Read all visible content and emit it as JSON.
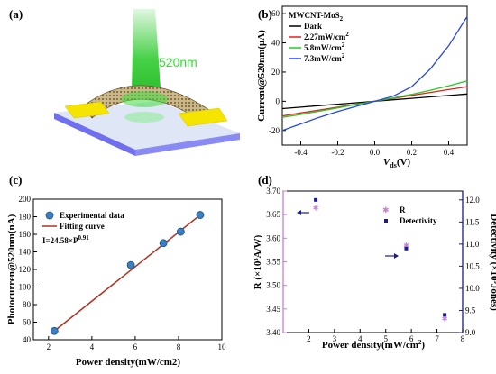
{
  "panel_labels": [
    "(a)",
    "(b)",
    "(c)",
    "(d)"
  ],
  "schematic": {
    "wavelength_label": "520nm",
    "colors": {
      "beam": "#33cc33",
      "electrode": "#f4e400",
      "substrate": "#dfe6f5",
      "substrate_edge": "#6f6ff0",
      "film": "#7a5c2e"
    }
  },
  "chart_data": [
    {
      "panel": "b",
      "type": "line",
      "title": "MWCNT-MoS2",
      "title_main": "MWCNT-MoS",
      "title_sub": "2",
      "xlabel_main": "V",
      "xlabel_sub": "ds",
      "xlabel_tail": "(V)",
      "ylabel": "Current@520nm(μA)",
      "xlim": [
        -0.5,
        0.5
      ],
      "ylim": [
        -30,
        65
      ],
      "xticks": [
        -0.4,
        -0.2,
        0.0,
        0.2,
        0.4
      ],
      "xtick_labels": [
        "-0.4",
        "-0.2",
        "0.0",
        "0.2",
        "0.4"
      ],
      "yticks": [
        -20,
        0,
        20,
        40,
        60
      ],
      "ytick_labels": [
        "-20",
        "0",
        "20",
        "40",
        "60"
      ],
      "legend_position": "top-left",
      "x": [
        -0.5,
        -0.4,
        -0.3,
        -0.2,
        -0.1,
        0.0,
        0.1,
        0.2,
        0.3,
        0.4,
        0.5
      ],
      "series": [
        {
          "name": "Dark",
          "legend_main": "Dark",
          "legend_sup": "",
          "color": "#000000",
          "values": [
            -5,
            -4,
            -3,
            -2,
            -1,
            0,
            1,
            2,
            3,
            4,
            5
          ]
        },
        {
          "name": "2.27mW/cm2",
          "legend_main": "2.27mW/cm",
          "legend_sup": "2",
          "color": "#e02020",
          "values": [
            -10,
            -8,
            -6,
            -4,
            -2,
            0,
            2,
            4,
            6,
            8,
            10
          ]
        },
        {
          "name": "5.8mW/cm2",
          "legend_main": "5.8mW/cm",
          "legend_sup": "2",
          "color": "#22cc22",
          "values": [
            -11,
            -9,
            -6.8,
            -4.5,
            -2.2,
            0,
            2.3,
            4.7,
            7.5,
            10.5,
            14
          ]
        },
        {
          "name": "7.3mW/cm2",
          "legend_main": "7.3mW/cm",
          "legend_sup": "2",
          "color": "#2244ee",
          "values": [
            -20,
            -15.5,
            -11,
            -7,
            -3.5,
            0,
            3.5,
            10,
            22,
            38,
            58
          ]
        }
      ]
    },
    {
      "panel": "c",
      "type": "scatter",
      "xlabel": "Power density(mW/cm2)",
      "ylabel": "Photocurren@520nm(nA)",
      "xlim": [
        1.3,
        10
      ],
      "ylim": [
        40,
        200
      ],
      "xticks": [
        2,
        4,
        6,
        8,
        10
      ],
      "xtick_labels": [
        "2",
        "4",
        "6",
        "8",
        "10"
      ],
      "yticks": [
        40,
        60,
        80,
        100,
        120,
        140,
        160,
        180,
        200
      ],
      "ytick_labels": [
        "40",
        "60",
        "80",
        "100",
        "120",
        "140",
        "160",
        "180",
        "200"
      ],
      "legend_position": "top-left",
      "legend": [
        "Experimental data",
        "Fitting curve"
      ],
      "annotation_main": "I=24.58×P",
      "annotation_sup": "0.91",
      "series": [
        {
          "name": "Experimental data",
          "x": [
            2.27,
            5.8,
            7.3,
            8.1,
            9.0
          ],
          "y": [
            50,
            125,
            150,
            163,
            182
          ],
          "color": "#3a7fc0"
        },
        {
          "name": "Fitting curve",
          "x": [
            2.27,
            9.0
          ],
          "y": [
            50,
            182
          ],
          "color": "#b03020"
        }
      ]
    },
    {
      "panel": "d",
      "type": "scatter",
      "xlabel_main": "Power density(mW/cm",
      "xlabel_sup": "2",
      "xlabel_tail": ")",
      "ylabel_left": "R (×10³A/W)",
      "ylabel_right": "Detectivity (×10⁹Jones)",
      "xlim": [
        1,
        8
      ],
      "ylim_left": [
        3.4,
        3.7
      ],
      "ylim_right": [
        9.0,
        12.2
      ],
      "xticks": [
        2,
        3,
        4,
        5,
        6,
        7,
        8
      ],
      "xtick_labels": [
        "2",
        "3",
        "4",
        "5",
        "6",
        "7",
        "8"
      ],
      "yticks_left": [
        3.4,
        3.45,
        3.5,
        3.55,
        3.6,
        3.65,
        3.7
      ],
      "ytick_labels_left": [
        "3.40",
        "3.45",
        "3.50",
        "3.55",
        "3.60",
        "3.65",
        "3.70"
      ],
      "yticks_right": [
        9.0,
        9.5,
        10.0,
        10.5,
        11.0,
        11.5,
        12.0
      ],
      "ytick_labels_right": [
        "9.0",
        "9.5",
        "10.0",
        "10.5",
        "11.0",
        "11.5",
        "12.0"
      ],
      "legend_position": "top-right",
      "legend": [
        "R",
        "Detectivity"
      ],
      "series": [
        {
          "name": "R",
          "axis": "left",
          "x": [
            2.27,
            5.8,
            7.3
          ],
          "y": [
            3.665,
            3.585,
            3.43
          ],
          "color": "#c77fd6"
        },
        {
          "name": "Detectivity",
          "axis": "right",
          "x": [
            2.27,
            5.8,
            7.3
          ],
          "y": [
            12.0,
            10.9,
            9.4
          ],
          "color": "#1a1a99"
        }
      ],
      "colors": {
        "left_axis": "#c77fd6",
        "right_axis": "#1a1a99"
      }
    }
  ]
}
